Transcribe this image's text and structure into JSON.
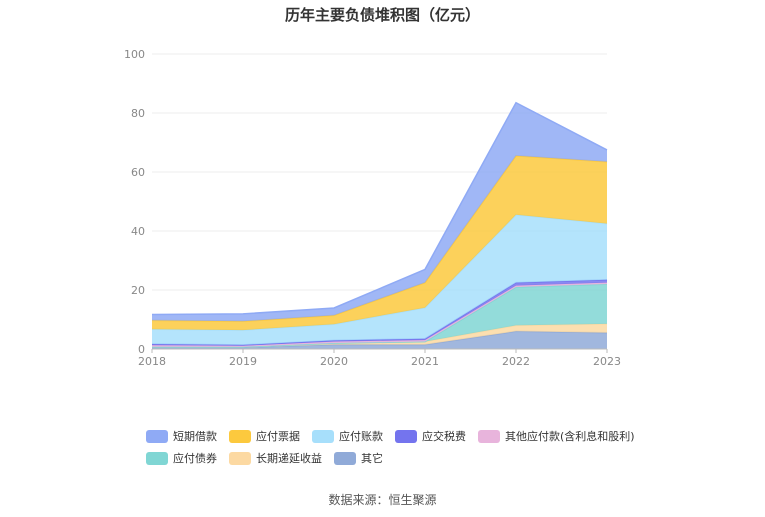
{
  "title": "历年主要负债堆积图（亿元）",
  "source": "数据来源：恒生聚源",
  "colors": {
    "短期借款": "#8faaf5",
    "应付票据": "#fcc93e",
    "应付账款": "#a7dffb",
    "应交税费": "#7474ee",
    "其他应付款(含利息和股利)": "#e8b4dc",
    "应付债券": "#80d6d4",
    "长期递延收益": "#fcd9a2",
    "其它": "#90aad8"
  },
  "chart_data": {
    "type": "area",
    "stacked": true,
    "x": [
      "2018",
      "2019",
      "2020",
      "2021",
      "2022",
      "2023"
    ],
    "ylim": [
      0,
      100
    ],
    "yticks": [
      "0",
      "20",
      "40",
      "60",
      "80",
      "100"
    ],
    "grid": true,
    "legend_position": "bottom",
    "series": [
      {
        "name": "其它",
        "values": [
          0.5,
          0.5,
          1.5,
          1.5,
          6.0,
          5.5
        ]
      },
      {
        "name": "长期递延收益",
        "values": [
          0.2,
          0.2,
          0.5,
          1.0,
          2.0,
          3.0
        ]
      },
      {
        "name": "应付债券",
        "values": [
          0,
          0,
          0,
          0,
          13.0,
          13.5
        ]
      },
      {
        "name": "其他应付款(含利息和股利)",
        "values": [
          0.6,
          0.4,
          0.5,
          0.5,
          0.5,
          0.5
        ]
      },
      {
        "name": "应交税费",
        "values": [
          0.4,
          0.3,
          0.4,
          0.5,
          1.0,
          1.0
        ]
      },
      {
        "name": "应付账款",
        "values": [
          5.0,
          5.0,
          5.5,
          10.5,
          23.0,
          19.0
        ]
      },
      {
        "name": "应付票据",
        "values": [
          3.0,
          3.0,
          3.0,
          8.5,
          20.0,
          21.0
        ]
      },
      {
        "name": "短期借款",
        "values": [
          2.0,
          2.5,
          2.5,
          4.5,
          18.0,
          4.0
        ]
      }
    ]
  },
  "legend": {
    "row1": [
      "短期借款",
      "应付票据",
      "应付账款",
      "应交税费",
      "其他应付款(含利息和股利)"
    ],
    "row2": [
      "应付债券",
      "长期递延收益",
      "其它"
    ]
  }
}
